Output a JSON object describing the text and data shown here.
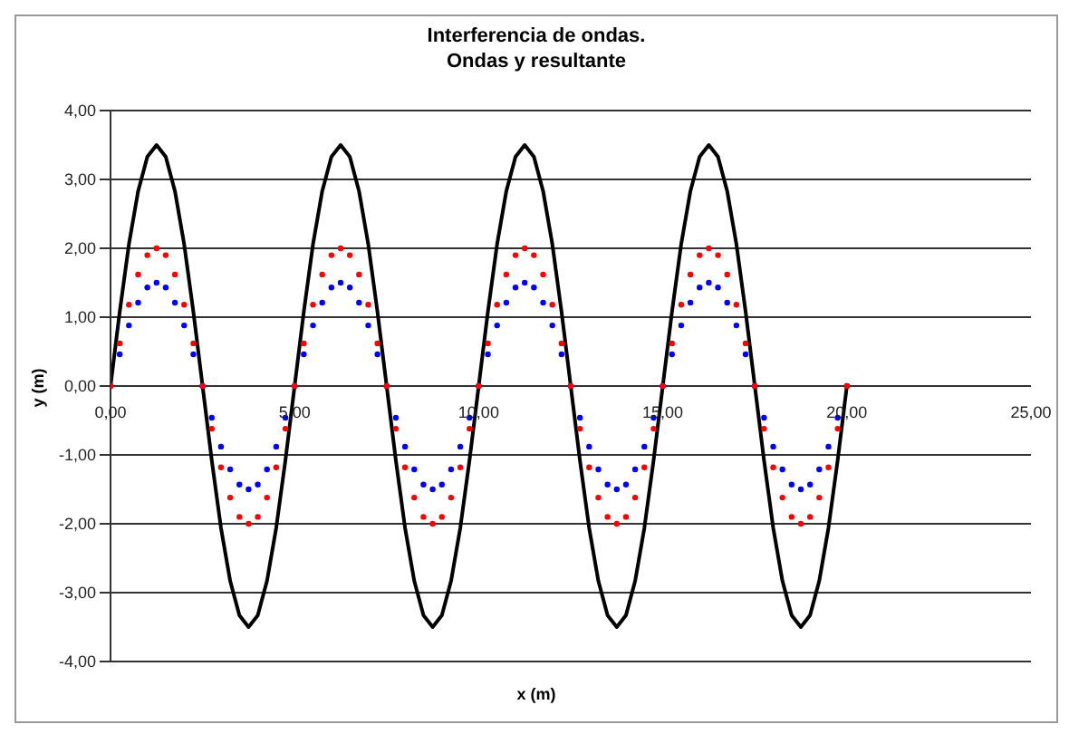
{
  "chart_data": {
    "type": "line",
    "title": "Interferencia de ondas.",
    "subtitle": "Ondas y resultante",
    "xlabel": "x (m)",
    "ylabel": "y (m)",
    "x": [
      0,
      0.25,
      0.5,
      0.75,
      1,
      1.25,
      1.5,
      1.75,
      2,
      2.25,
      2.5,
      2.75,
      3,
      3.25,
      3.5,
      3.75,
      4,
      4.25,
      4.5,
      4.75,
      5,
      5.25,
      5.5,
      5.75,
      6,
      6.25,
      6.5,
      6.75,
      7,
      7.25,
      7.5,
      7.75,
      8,
      8.25,
      8.5,
      8.75,
      9,
      9.25,
      9.5,
      9.75,
      10,
      10.25,
      10.5,
      10.75,
      11,
      11.25,
      11.5,
      11.75,
      12,
      12.25,
      12.5,
      12.75,
      13,
      13.25,
      13.5,
      13.75,
      14,
      14.25,
      14.5,
      14.75,
      15,
      15.25,
      15.5,
      15.75,
      16,
      16.25,
      16.5,
      16.75,
      17,
      17.25,
      17.5,
      17.75,
      18,
      18.25,
      18.5,
      18.75,
      19,
      19.25,
      19.5,
      19.75,
      20
    ],
    "series": [
      {
        "type": "scatter",
        "marker": "circle",
        "color": "#0000ff",
        "values": [
          0,
          0.46,
          0.88,
          1.21,
          1.43,
          1.5,
          1.43,
          1.21,
          0.88,
          0.46,
          0,
          -0.46,
          -0.88,
          -1.21,
          -1.43,
          -1.5,
          -1.43,
          -1.21,
          -0.88,
          -0.46,
          0,
          0.46,
          0.88,
          1.21,
          1.43,
          1.5,
          1.43,
          1.21,
          0.88,
          0.46,
          0,
          -0.46,
          -0.88,
          -1.21,
          -1.43,
          -1.5,
          -1.43,
          -1.21,
          -0.88,
          -0.46,
          0,
          0.46,
          0.88,
          1.21,
          1.43,
          1.5,
          1.43,
          1.21,
          0.88,
          0.46,
          0,
          -0.46,
          -0.88,
          -1.21,
          -1.43,
          -1.5,
          -1.43,
          -1.21,
          -0.88,
          -0.46,
          0,
          0.46,
          0.88,
          1.21,
          1.43,
          1.5,
          1.43,
          1.21,
          0.88,
          0.46,
          0,
          -0.46,
          -0.88,
          -1.21,
          -1.43,
          -1.5,
          -1.43,
          -1.21,
          -0.88,
          -0.46,
          0
        ]
      },
      {
        "type": "scatter",
        "marker": "circle",
        "color": "#ff0000",
        "values": [
          0,
          0.62,
          1.18,
          1.62,
          1.9,
          2,
          1.9,
          1.62,
          1.18,
          0.62,
          0,
          -0.62,
          -1.18,
          -1.62,
          -1.9,
          -2,
          -1.9,
          -1.62,
          -1.18,
          -0.62,
          0,
          0.62,
          1.18,
          1.62,
          1.9,
          2,
          1.9,
          1.62,
          1.18,
          0.62,
          0,
          -0.62,
          -1.18,
          -1.62,
          -1.9,
          -2,
          -1.9,
          -1.62,
          -1.18,
          -0.62,
          0,
          0.62,
          1.18,
          1.62,
          1.9,
          2,
          1.9,
          1.62,
          1.18,
          0.62,
          0,
          -0.62,
          -1.18,
          -1.62,
          -1.9,
          -2,
          -1.9,
          -1.62,
          -1.18,
          -0.62,
          0,
          0.62,
          1.18,
          1.62,
          1.9,
          2,
          1.9,
          1.62,
          1.18,
          0.62,
          0,
          -0.62,
          -1.18,
          -1.62,
          -1.9,
          -2,
          -1.9,
          -1.62,
          -1.18,
          -0.62,
          0
        ]
      },
      {
        "marker": "none",
        "line_style": "solid",
        "color": "#000000",
        "values": [
          0,
          1.08,
          2.06,
          2.83,
          3.33,
          3.5,
          3.33,
          2.83,
          2.06,
          1.08,
          0,
          -1.08,
          -2.06,
          -2.83,
          -3.33,
          -3.5,
          -3.33,
          -2.83,
          -2.06,
          -1.08,
          0,
          1.08,
          2.06,
          2.83,
          3.33,
          3.5,
          3.33,
          2.83,
          2.06,
          1.08,
          0,
          -1.08,
          -2.06,
          -2.83,
          -3.33,
          -3.5,
          -3.33,
          -2.83,
          -2.06,
          -1.08,
          0,
          1.08,
          2.06,
          2.83,
          3.33,
          3.5,
          3.33,
          2.83,
          2.06,
          1.08,
          0,
          -1.08,
          -2.06,
          -2.83,
          -3.33,
          -3.5,
          -3.33,
          -2.83,
          -2.06,
          -1.08,
          0,
          1.08,
          2.06,
          2.83,
          3.33,
          3.5,
          3.33,
          2.83,
          2.06,
          1.08,
          0,
          -1.08,
          -2.06,
          -2.83,
          -3.33,
          -3.5,
          -3.33,
          -2.83,
          -2.06,
          -1.08,
          0
        ]
      }
    ],
    "xlim": [
      0,
      25
    ],
    "xticks": [
      {
        "value": 0,
        "label": "0,00"
      },
      {
        "value": 5,
        "label": "5,00"
      },
      {
        "value": 10,
        "label": "10,00"
      },
      {
        "value": 15,
        "label": "15,00"
      },
      {
        "value": 20,
        "label": "20,00"
      },
      {
        "value": 25,
        "label": "25,00"
      }
    ],
    "ylim": [
      -4,
      4
    ],
    "yticks": [
      {
        "value": -4,
        "label": "-4,00"
      },
      {
        "value": -3,
        "label": "-3,00"
      },
      {
        "value": -2,
        "label": "-2,00"
      },
      {
        "value": -1,
        "label": "-1,00"
      },
      {
        "value": 0,
        "label": "0,00"
      },
      {
        "value": 1,
        "label": "1,00"
      },
      {
        "value": 2,
        "label": "2,00"
      },
      {
        "value": 3,
        "label": "3,00"
      },
      {
        "value": 4,
        "label": "4,00"
      }
    ],
    "grid": "y",
    "legend": false
  }
}
